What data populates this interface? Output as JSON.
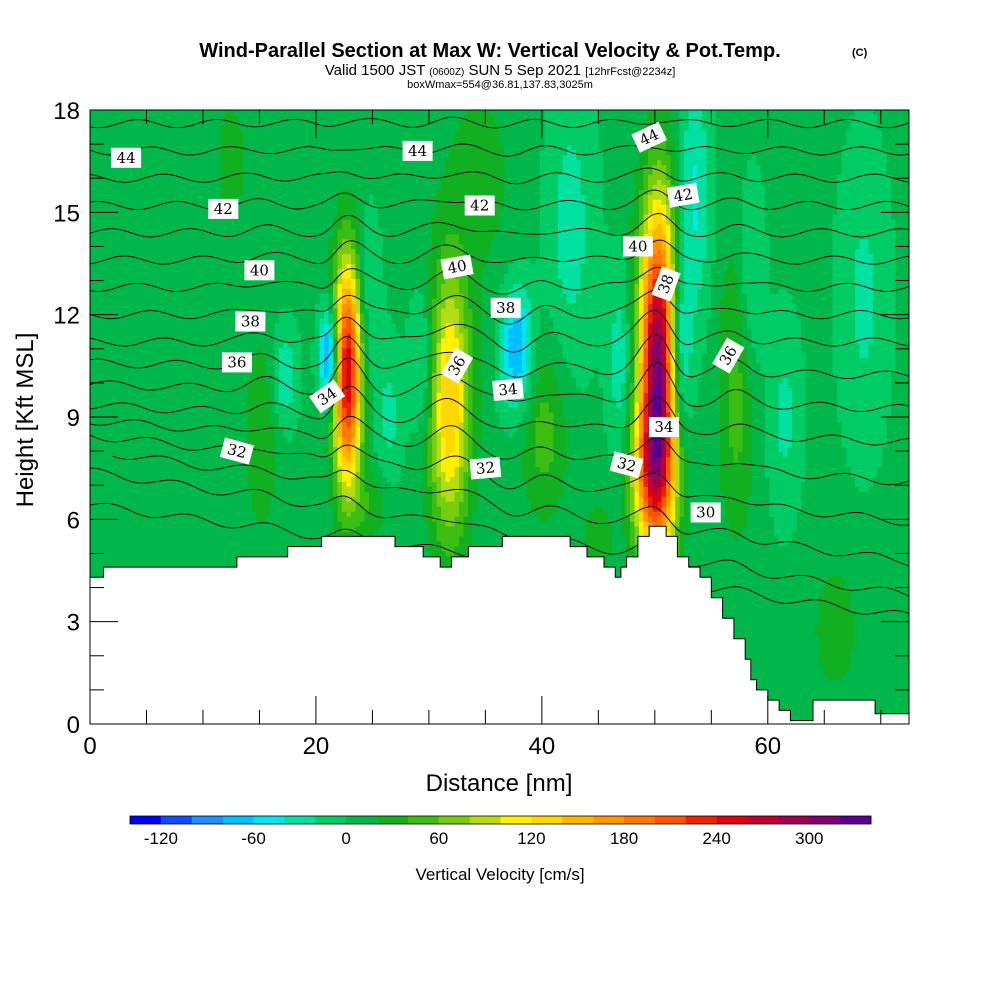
{
  "chart_data": {
    "type": "contour",
    "title": "Wind-Parallel Section at Max W: Vertical Velocity & Pot.Temp.",
    "title_tag": "(C)",
    "subtitle": {
      "valid_prefix": "Valid 1500 JST",
      "utc": "(0600Z)",
      "date": "SUN 5 Sep 2021",
      "forecast": "[12hrFcst@2234z]"
    },
    "box_info": "boxWmax=554@36.81,137.83,3025m",
    "xlabel": "Distance [nm]",
    "ylabel": "Height [Kft MSL]",
    "xlim": [
      0,
      72.5
    ],
    "ylim": [
      0,
      18
    ],
    "xticks": [
      0,
      20,
      40,
      60
    ],
    "yticks": [
      0,
      3,
      6,
      9,
      12,
      15,
      18
    ],
    "colorbar": {
      "label": "Vertical Velocity [cm/s]",
      "tick_values": [
        -120,
        -60,
        0,
        60,
        120,
        180,
        240,
        300
      ],
      "levels": [
        -140,
        -120,
        -100,
        -80,
        -60,
        -40,
        -20,
        0,
        20,
        40,
        60,
        80,
        100,
        120,
        140,
        160,
        180,
        200,
        220,
        240,
        260,
        280,
        300,
        320
      ],
      "colors": [
        "#0000ff",
        "#0f4bff",
        "#1e90ff",
        "#00bfff",
        "#00e5ee",
        "#00e0a0",
        "#00cc66",
        "#00b84a",
        "#10b020",
        "#3cbd12",
        "#78cc10",
        "#b4dc10",
        "#ffef00",
        "#ffd700",
        "#ffb400",
        "#ff9600",
        "#ff7800",
        "#ff5500",
        "#ee2200",
        "#dd0010",
        "#c00030",
        "#a00050",
        "#800070",
        "#5a0090"
      ]
    },
    "background_w": 5,
    "updrafts": [
      {
        "x": 22.8,
        "z": 10.3,
        "sx": 0.9,
        "sz": 2.3,
        "w": 255
      },
      {
        "x": 31.8,
        "z": 9.4,
        "sx": 1.3,
        "sz": 2.7,
        "w": 135
      },
      {
        "x": 50.4,
        "z": 10.5,
        "sx": 1.2,
        "sz": 3.2,
        "w": 320
      },
      {
        "x": 49.6,
        "z": 7.2,
        "sx": 1.3,
        "sz": 1.5,
        "w": 120
      },
      {
        "x": 15.2,
        "z": 8.5,
        "sx": 1.0,
        "sz": 2.0,
        "w": 35
      },
      {
        "x": 40.2,
        "z": 8.6,
        "sx": 1.5,
        "sz": 1.8,
        "w": 45
      },
      {
        "x": 57.2,
        "z": 9.8,
        "sx": 1.1,
        "sz": 3.0,
        "w": 45
      },
      {
        "x": 34.5,
        "z": 16.0,
        "sx": 2.5,
        "sz": 2.5,
        "w": 22
      },
      {
        "x": 25.0,
        "z": 6.4,
        "sx": 1.2,
        "sz": 0.7,
        "w": 30
      },
      {
        "x": 45.0,
        "z": 5.4,
        "sx": 1.0,
        "sz": 0.9,
        "w": 28
      },
      {
        "x": 66.0,
        "z": 2.8,
        "sx": 1.5,
        "sz": 1.4,
        "w": 28
      },
      {
        "x": 5.0,
        "z": 11.0,
        "sx": 2.2,
        "sz": 3.0,
        "w": 12
      },
      {
        "x": 12.5,
        "z": 16.5,
        "sx": 1.8,
        "sz": 2.5,
        "w": 18
      }
    ],
    "downdrafts": [
      {
        "x": 21.2,
        "z": 10.8,
        "sx": 0.6,
        "sz": 1.0,
        "w": -125
      },
      {
        "x": 37.8,
        "z": 11.0,
        "sx": 1.0,
        "sz": 1.3,
        "w": -90
      },
      {
        "x": 52.0,
        "z": 11.0,
        "sx": 0.8,
        "sz": 2.0,
        "w": -115
      },
      {
        "x": 29.5,
        "z": 10.5,
        "sx": 0.8,
        "sz": 1.5,
        "w": -45
      },
      {
        "x": 17.2,
        "z": 10.2,
        "sx": 0.8,
        "sz": 1.0,
        "w": -45
      },
      {
        "x": 24.5,
        "z": 12.0,
        "sx": 0.8,
        "sz": 2.0,
        "w": -35
      },
      {
        "x": 53.5,
        "z": 15.5,
        "sx": 1.0,
        "sz": 2.5,
        "w": -50
      },
      {
        "x": 42.5,
        "z": 14.5,
        "sx": 1.5,
        "sz": 3.0,
        "w": -35
      },
      {
        "x": 47.0,
        "z": 10.5,
        "sx": 0.8,
        "sz": 2.0,
        "w": -40
      },
      {
        "x": 58.5,
        "z": 13.0,
        "sx": 0.8,
        "sz": 2.0,
        "w": -35
      },
      {
        "x": 61.5,
        "z": 9.0,
        "sx": 1.0,
        "sz": 2.0,
        "w": -30
      },
      {
        "x": 68.5,
        "z": 12.5,
        "sx": 1.5,
        "sz": 3.0,
        "w": -30
      },
      {
        "x": 26.5,
        "z": 9.0,
        "sx": 0.8,
        "sz": 1.5,
        "w": -30
      }
    ],
    "terrain": [
      [
        0,
        4.3
      ],
      [
        1.2,
        4.3
      ],
      [
        1.2,
        4.6
      ],
      [
        13.0,
        4.6
      ],
      [
        13.0,
        4.9
      ],
      [
        17.5,
        4.9
      ],
      [
        17.5,
        5.2
      ],
      [
        20.5,
        5.2
      ],
      [
        20.5,
        5.5
      ],
      [
        27.0,
        5.5
      ],
      [
        27.0,
        5.2
      ],
      [
        29.5,
        5.2
      ],
      [
        29.5,
        4.9
      ],
      [
        31.0,
        4.9
      ],
      [
        31.0,
        4.6
      ],
      [
        32.0,
        4.6
      ],
      [
        32.0,
        4.9
      ],
      [
        33.5,
        4.9
      ],
      [
        33.5,
        5.2
      ],
      [
        36.5,
        5.2
      ],
      [
        36.5,
        5.5
      ],
      [
        42.5,
        5.5
      ],
      [
        42.5,
        5.2
      ],
      [
        44.0,
        5.2
      ],
      [
        44.0,
        4.9
      ],
      [
        45.5,
        4.9
      ],
      [
        45.5,
        4.6
      ],
      [
        46.5,
        4.6
      ],
      [
        46.5,
        4.3
      ],
      [
        47.0,
        4.3
      ],
      [
        47.0,
        4.6
      ],
      [
        47.5,
        4.6
      ],
      [
        47.5,
        4.9
      ],
      [
        48.5,
        4.9
      ],
      [
        48.5,
        5.5
      ],
      [
        49.5,
        5.5
      ],
      [
        49.5,
        5.8
      ],
      [
        51.0,
        5.8
      ],
      [
        51.0,
        5.5
      ],
      [
        52.0,
        5.5
      ],
      [
        52.0,
        4.9
      ],
      [
        53.0,
        4.9
      ],
      [
        53.0,
        4.6
      ],
      [
        54.0,
        4.6
      ],
      [
        54.0,
        4.3
      ],
      [
        55.0,
        4.3
      ],
      [
        55.0,
        3.7
      ],
      [
        56.0,
        3.7
      ],
      [
        56.0,
        3.1
      ],
      [
        57.0,
        3.1
      ],
      [
        57.0,
        2.5
      ],
      [
        58.0,
        2.5
      ],
      [
        58.0,
        1.9
      ],
      [
        58.5,
        1.9
      ],
      [
        58.5,
        1.3
      ],
      [
        59.0,
        1.3
      ],
      [
        59.0,
        1.0
      ],
      [
        60.0,
        1.0
      ],
      [
        60.0,
        0.7
      ],
      [
        61.0,
        0.7
      ],
      [
        61.0,
        0.4
      ],
      [
        62.0,
        0.4
      ],
      [
        62.0,
        0.1
      ],
      [
        64.0,
        0.1
      ],
      [
        64.0,
        0.7
      ],
      [
        69.5,
        0.7
      ],
      [
        69.5,
        0.3
      ],
      [
        72.5,
        0.3
      ]
    ],
    "theta_lines": [
      {
        "base_z": 4.8,
        "amp": 0.2,
        "slope": -0.045,
        "start_x": 0,
        "label": ""
      },
      {
        "base_z": 5.6,
        "amp": 0.35,
        "slope": -0.05,
        "start_x": 0,
        "label": ""
      },
      {
        "base_z": 6.4,
        "amp": 0.5,
        "slope": -0.045,
        "start_x": 2.0,
        "label": ""
      },
      {
        "base_z": 7.2,
        "amp": 0.65,
        "slope": -0.035,
        "start_x": 0,
        "label": ""
      },
      {
        "base_z": 8.0,
        "amp": 0.75,
        "slope": -0.025,
        "start_x": 0,
        "label": ""
      },
      {
        "base_z": 8.8,
        "amp": 0.85,
        "slope": -0.015,
        "start_x": 0,
        "label": ""
      },
      {
        "base_z": 9.6,
        "amp": 0.9,
        "slope": -0.01,
        "start_x": 0,
        "label": ""
      },
      {
        "base_z": 10.4,
        "amp": 0.85,
        "slope": -0.005,
        "start_x": 0,
        "label": ""
      },
      {
        "base_z": 11.2,
        "amp": 0.8,
        "slope": 0.0,
        "start_x": 0,
        "label": ""
      },
      {
        "base_z": 12.0,
        "amp": 0.7,
        "slope": 0.0,
        "start_x": 0,
        "label": ""
      },
      {
        "base_z": 12.8,
        "amp": 0.6,
        "slope": 0.0,
        "start_x": 0,
        "label": ""
      },
      {
        "base_z": 13.6,
        "amp": 0.5,
        "slope": 0.0,
        "start_x": 0,
        "label": ""
      },
      {
        "base_z": 14.4,
        "amp": 0.4,
        "slope": 0.0,
        "start_x": 0,
        "label": ""
      },
      {
        "base_z": 15.2,
        "amp": 0.3,
        "slope": 0.0,
        "start_x": 0,
        "label": ""
      },
      {
        "base_z": 16.0,
        "amp": 0.22,
        "slope": 0.0,
        "start_x": 0,
        "label": ""
      },
      {
        "base_z": 16.8,
        "amp": 0.15,
        "slope": 0.0,
        "start_x": 0,
        "label": ""
      },
      {
        "base_z": 17.6,
        "amp": 0.1,
        "slope": 0.0,
        "start_x": 0,
        "label": ""
      }
    ],
    "contour_labels": [
      {
        "text": "44",
        "x": 3.2,
        "z": 16.6,
        "angle": 0
      },
      {
        "text": "44",
        "x": 29.0,
        "z": 16.8,
        "angle": 0
      },
      {
        "text": "44",
        "x": 49.5,
        "z": 17.2,
        "angle": -25
      },
      {
        "text": "42",
        "x": 11.8,
        "z": 15.1,
        "angle": 0
      },
      {
        "text": "42",
        "x": 34.5,
        "z": 15.2,
        "angle": 0
      },
      {
        "text": "42",
        "x": 52.5,
        "z": 15.5,
        "angle": -10
      },
      {
        "text": "40",
        "x": 15.0,
        "z": 13.3,
        "angle": 0
      },
      {
        "text": "40",
        "x": 32.5,
        "z": 13.4,
        "angle": -10
      },
      {
        "text": "40",
        "x": 48.5,
        "z": 14.0,
        "angle": 0
      },
      {
        "text": "38",
        "x": 14.2,
        "z": 11.8,
        "angle": 0
      },
      {
        "text": "38",
        "x": 36.8,
        "z": 12.2,
        "angle": 0
      },
      {
        "text": "38",
        "x": 51.0,
        "z": 12.9,
        "angle": -70
      },
      {
        "text": "36",
        "x": 13.0,
        "z": 10.6,
        "angle": 0
      },
      {
        "text": "36",
        "x": 32.5,
        "z": 10.5,
        "angle": -60
      },
      {
        "text": "36",
        "x": 56.5,
        "z": 10.8,
        "angle": -60
      },
      {
        "text": "34",
        "x": 21.0,
        "z": 9.6,
        "angle": -35
      },
      {
        "text": "34",
        "x": 37.0,
        "z": 9.8,
        "angle": -5
      },
      {
        "text": "34",
        "x": 50.8,
        "z": 8.7,
        "angle": 0
      },
      {
        "text": "32",
        "x": 13.0,
        "z": 8.0,
        "angle": 15
      },
      {
        "text": "32",
        "x": 35.0,
        "z": 7.5,
        "angle": -5
      },
      {
        "text": "32",
        "x": 47.5,
        "z": 7.6,
        "angle": 15
      },
      {
        "text": "30",
        "x": 54.5,
        "z": 6.2,
        "angle": 0
      }
    ]
  }
}
